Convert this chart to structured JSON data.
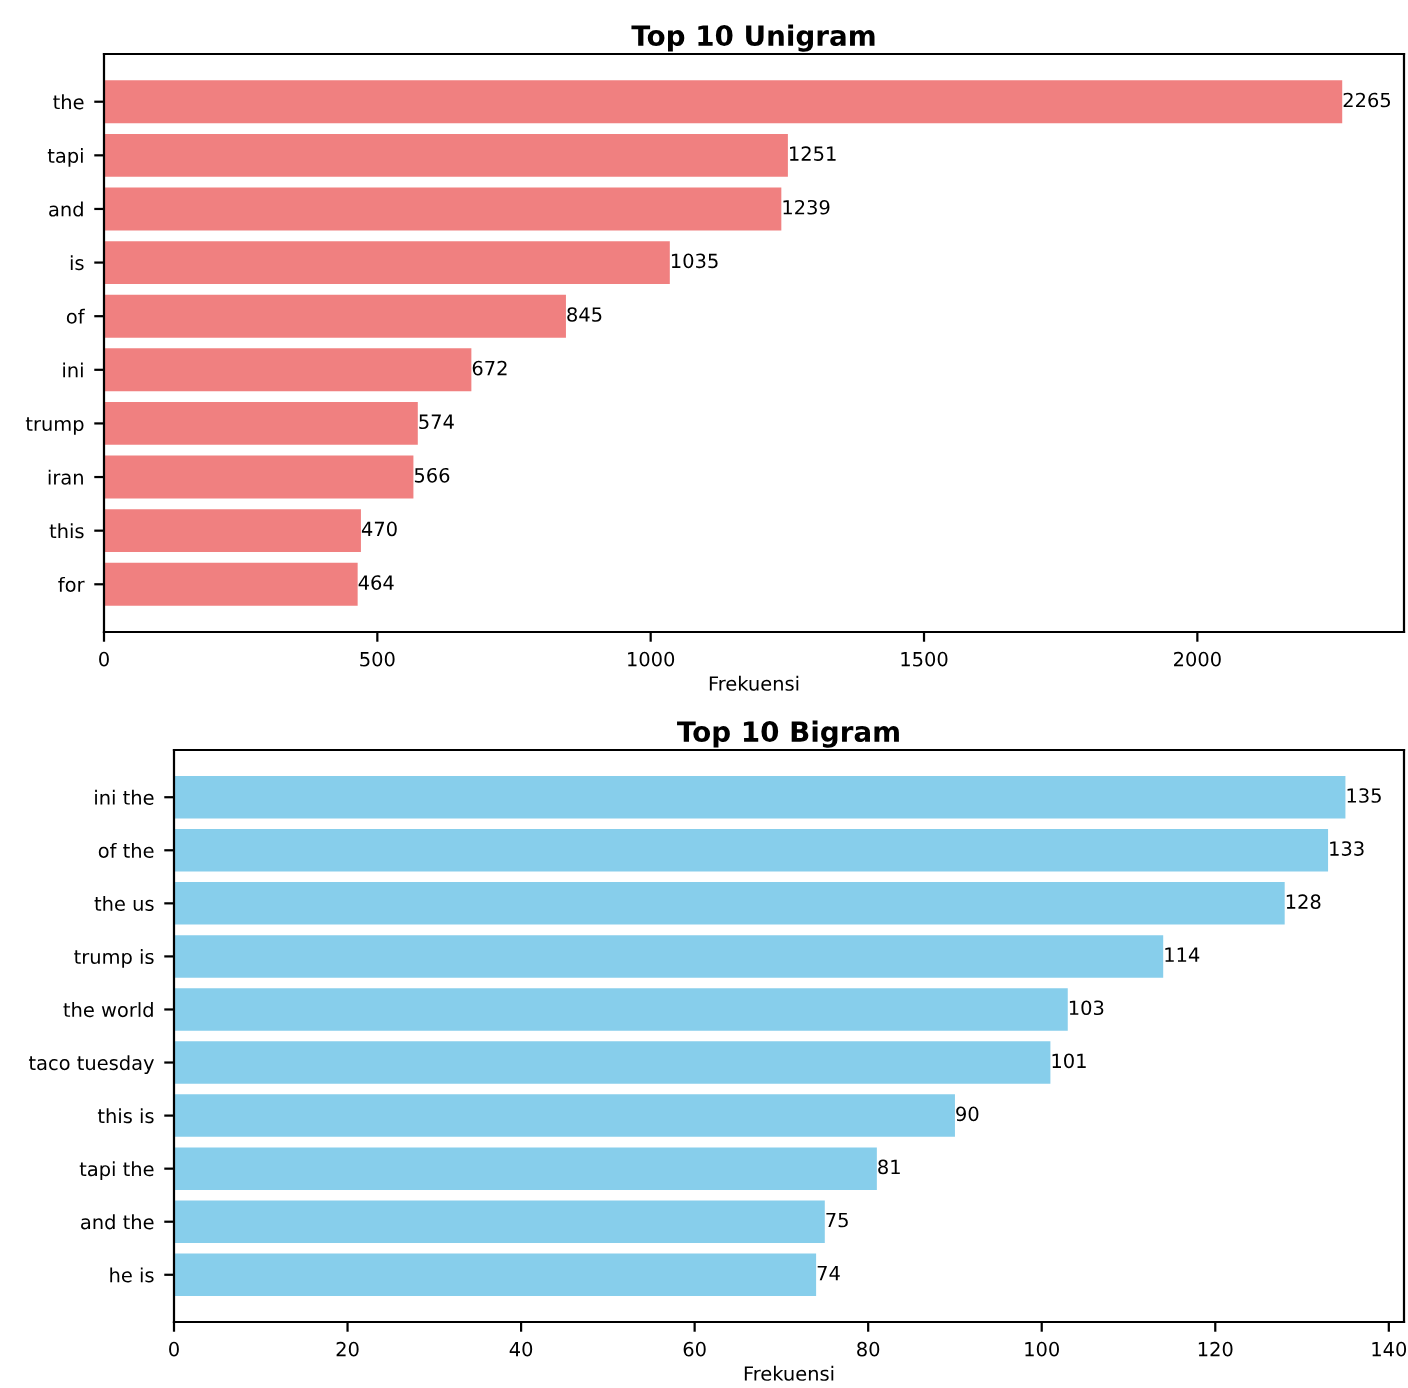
{
  "chart_data": [
    {
      "type": "bar",
      "orientation": "horizontal",
      "title": "Top 10 Unigram",
      "xlabel": "Frekuensi",
      "categories": [
        "the",
        "tapi",
        "and",
        "is",
        "of",
        "ini",
        "trump",
        "iran",
        "this",
        "for"
      ],
      "values": [
        2265,
        1251,
        1239,
        1035,
        845,
        672,
        574,
        566,
        470,
        464
      ],
      "color": "#f08080",
      "xlim": [
        0,
        2378
      ],
      "xticks": [
        0,
        500,
        1000,
        1500,
        2000
      ],
      "data_labels": true,
      "grid": false,
      "legend": false
    },
    {
      "type": "bar",
      "orientation": "horizontal",
      "title": "Top 10 Bigram",
      "xlabel": "Frekuensi",
      "categories": [
        "ini the",
        "of the",
        "the us",
        "trump is",
        "the world",
        "taco tuesday",
        "this is",
        "tapi the",
        "and the",
        "he is"
      ],
      "values": [
        135,
        133,
        128,
        114,
        103,
        101,
        90,
        81,
        75,
        74
      ],
      "color": "#87ceeb",
      "xlim": [
        0,
        141.75
      ],
      "xticks": [
        0,
        20,
        40,
        60,
        80,
        100,
        120,
        140
      ],
      "data_labels": true,
      "grid": false,
      "legend": false
    }
  ]
}
